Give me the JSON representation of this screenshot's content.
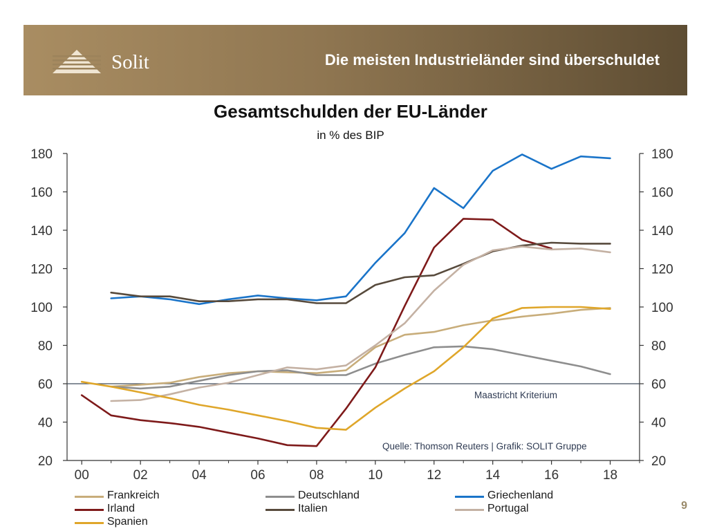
{
  "header": {
    "logo_text": "Solit",
    "title": "Die meisten Industrieländer sind überschuldet",
    "colors": {
      "gradient_start": "#a98d62",
      "gradient_end": "#5e4d33"
    }
  },
  "page_number": "9",
  "chart_data": {
    "type": "line",
    "title": "Gesamtschulden der EU-Länder",
    "subtitle": "in % des BIP",
    "xlabel": "",
    "ylabel": "",
    "xlim": [
      1999.5,
      2019
    ],
    "ylim": [
      20,
      180
    ],
    "x_ticks": [
      2000,
      2002,
      2004,
      2006,
      2008,
      2010,
      2012,
      2014,
      2016,
      2018
    ],
    "x_tick_labels": [
      "00",
      "02",
      "04",
      "06",
      "08",
      "10",
      "12",
      "14",
      "16",
      "18"
    ],
    "y_ticks": [
      20,
      40,
      60,
      80,
      100,
      120,
      140,
      160,
      180
    ],
    "y_tick_labels": [
      "20",
      "40",
      "60",
      "80",
      "100",
      "120",
      "140",
      "160",
      "180"
    ],
    "grid": false,
    "reference_line": {
      "y": 60,
      "label": "Maastricht Kriterium",
      "color": "#3d4a5a"
    },
    "source_note": "Quelle: Thomson Reuters | Grafik: SOLIT Gruppe",
    "legend_position": "bottom",
    "series": [
      {
        "name": "Frankreich",
        "color": "#c8ad7a",
        "x": [
          2001,
          2002,
          2003,
          2004,
          2005,
          2006,
          2007,
          2008,
          2009,
          2010,
          2011,
          2012,
          2013,
          2014,
          2015,
          2016,
          2017,
          2018
        ],
        "y": [
          58.5,
          59.5,
          60.5,
          63.5,
          65.5,
          66.5,
          66,
          65.5,
          67,
          79,
          85.5,
          87,
          90.5,
          93,
          95,
          96.5,
          98.5,
          99.5
        ]
      },
      {
        "name": "Deutschland",
        "color": "#8e8e8e",
        "x": [
          2001,
          2002,
          2003,
          2004,
          2005,
          2006,
          2007,
          2008,
          2009,
          2010,
          2011,
          2012,
          2013,
          2014,
          2015,
          2016,
          2017,
          2018
        ],
        "y": [
          58.5,
          57.5,
          58.5,
          61.5,
          64.5,
          66.5,
          67,
          64.5,
          64.5,
          70.5,
          75,
          79,
          79.5,
          78,
          75,
          72,
          69,
          65
        ]
      },
      {
        "name": "Griechenland",
        "color": "#1a74c9",
        "x": [
          2001,
          2002,
          2003,
          2004,
          2005,
          2006,
          2007,
          2008,
          2009,
          2010,
          2011,
          2012,
          2013,
          2014,
          2015,
          2016,
          2017,
          2018
        ],
        "y": [
          104.5,
          105.5,
          104,
          101.5,
          104,
          106,
          104.5,
          103.5,
          105.5,
          123,
          138.5,
          162,
          151.5,
          171,
          179.5,
          172,
          178.5,
          177.5
        ]
      },
      {
        "name": "Irland",
        "color": "#7e1a1a",
        "x": [
          2000,
          2001,
          2002,
          2003,
          2004,
          2005,
          2006,
          2007,
          2008,
          2009,
          2010,
          2011,
          2012,
          2013,
          2014,
          2015,
          2016
        ],
        "y": [
          54,
          43.5,
          41,
          39.5,
          37.5,
          34.5,
          31.5,
          28,
          27.5,
          47,
          68.5,
          100.5,
          131,
          146,
          145.5,
          135,
          130.5
        ]
      },
      {
        "name": "Italien",
        "color": "#574a3c",
        "x": [
          2001,
          2002,
          2003,
          2004,
          2005,
          2006,
          2007,
          2008,
          2009,
          2010,
          2011,
          2012,
          2013,
          2014,
          2015,
          2016,
          2017,
          2018
        ],
        "y": [
          107.5,
          105.5,
          105.5,
          103,
          103,
          104,
          104,
          102,
          102,
          111.5,
          115.5,
          116.5,
          122.5,
          129,
          132,
          133.5,
          133,
          133
        ]
      },
      {
        "name": "Portugal",
        "color": "#c4b1a3",
        "x": [
          2001,
          2002,
          2003,
          2004,
          2005,
          2006,
          2007,
          2008,
          2009,
          2010,
          2011,
          2012,
          2013,
          2014,
          2015,
          2016,
          2017,
          2018
        ],
        "y": [
          51,
          51.5,
          54.5,
          58,
          60.5,
          64.5,
          68.5,
          67.5,
          69.5,
          80,
          91.5,
          108.5,
          122,
          129.5,
          131.5,
          130,
          130.5,
          128.5
        ]
      },
      {
        "name": "Spanien",
        "color": "#dfa62a",
        "x": [
          2000,
          2001,
          2002,
          2003,
          2004,
          2005,
          2006,
          2007,
          2008,
          2009,
          2010,
          2011,
          2012,
          2013,
          2014,
          2015,
          2016,
          2017,
          2018
        ],
        "y": [
          61,
          58.5,
          55.5,
          52.5,
          49,
          46.5,
          43.5,
          40.5,
          37,
          36,
          47.5,
          57.5,
          66.5,
          79,
          94,
          99.5,
          100,
          100,
          99
        ]
      }
    ]
  }
}
